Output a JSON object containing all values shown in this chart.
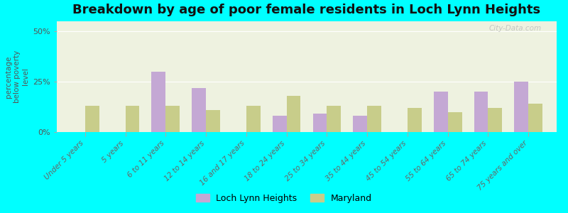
{
  "title": "Breakdown by age of poor female residents in Loch Lynn Heights",
  "ylabel": "percentage\nbelow poverty\nlevel",
  "categories": [
    "Under 5 years",
    "5 years",
    "6 to 11 years",
    "12 to 14 years",
    "16 and 17 years",
    "18 to 24 years",
    "25 to 34 years",
    "35 to 44 years",
    "45 to 54 years",
    "55 to 64 years",
    "65 to 74 years",
    "75 years and over"
  ],
  "loch_lynn_heights": [
    0,
    0,
    30,
    22,
    0,
    8,
    9,
    8,
    0,
    20,
    20,
    25
  ],
  "maryland": [
    13,
    13,
    13,
    11,
    13,
    18,
    13,
    13,
    12,
    10,
    12,
    14
  ],
  "loch_color": "#c4a8d4",
  "maryland_color": "#c8cd8a",
  "background_color": "#00ffff",
  "plot_bg": "#eef2e0",
  "ylim": [
    0,
    55
  ],
  "yticks": [
    0,
    25,
    50
  ],
  "ytick_labels": [
    "0%",
    "25%",
    "50%"
  ],
  "title_fontsize": 13,
  "axis_label_fontsize": 7.5,
  "legend_labels": [
    "Loch Lynn Heights",
    "Maryland"
  ],
  "watermark": "City-Data.com"
}
